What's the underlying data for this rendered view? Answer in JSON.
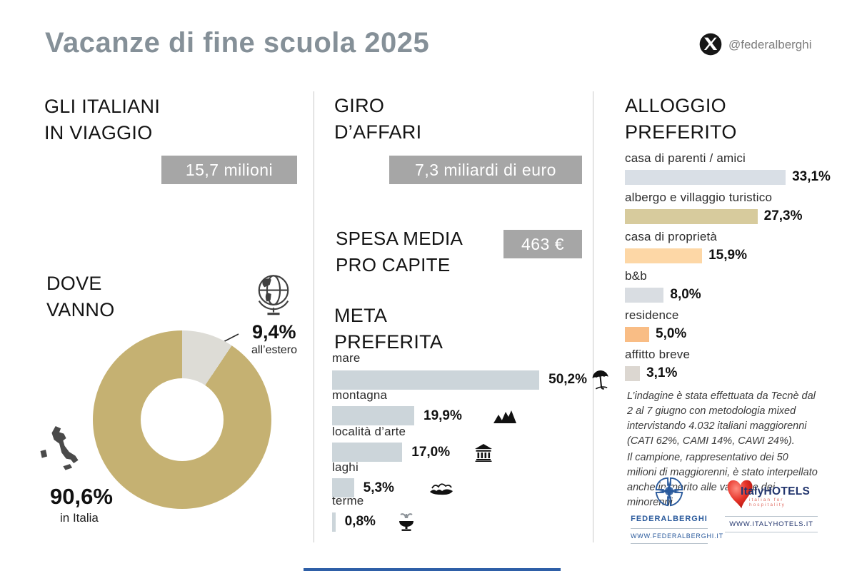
{
  "header": {
    "title": "Vacanze di fine scuola 2025",
    "social_handle": "@federalberghi",
    "title_color": "#859098"
  },
  "sections": {
    "travelers": {
      "title1": "GLI ITALIANI",
      "title2": "IN VIAGGIO",
      "value": "15,7 milioni"
    },
    "where": {
      "title1": "DOVE",
      "title2": "VANNO"
    },
    "business": {
      "title1": "GIRO",
      "title2": "D’AFFARI",
      "value": "7,3 miliardi di euro"
    },
    "spend": {
      "title1": "SPESA MEDIA",
      "title2": "PRO CAPITE",
      "value": "463 €"
    },
    "destination": {
      "title1": "META",
      "title2": "PREFERITA"
    },
    "lodging": {
      "title1": "ALLOGGIO",
      "title2": "PREFERITO"
    }
  },
  "footnote": {
    "para1": "L’indagine è stata effettuata da Tecnè dal 2 al 7 giugno con metodologia mixed intervistando 4.032 italiani maggiorenni (CATI 62%, CAMI 14%, CAWI 24%).",
    "para2": "Il campione, rappresentativo dei 50 milioni di maggiorenni, è stato interpellato anche in merito alle vacanze dei minorenni."
  },
  "logos": {
    "federalberghi": {
      "name": "FEDERALBERGHI",
      "url": "WWW.FEDERALBERGHI.IT",
      "blue": "#2a5a9c"
    },
    "italyhotels": {
      "name": "ItalyHOTELS",
      "tagline": "italian for hospitality",
      "url": "WWW.ITALYHOTELS.IT",
      "red": "#e63329",
      "navy": "#23366e"
    }
  },
  "chart_data": [
    {
      "id": "dove-vanno-donut",
      "type": "pie",
      "donut": true,
      "title": "DOVE VANNO",
      "categories": [
        "in Italia",
        "all’estero"
      ],
      "values": [
        90.6,
        9.4
      ],
      "labels": [
        "90,6%",
        "9,4%"
      ],
      "colors": [
        "#c5b172",
        "#dddcd6"
      ],
      "legend_position": "outside-callouts"
    },
    {
      "id": "meta-preferita",
      "type": "bar",
      "orientation": "horizontal",
      "title": "META PREFERITA",
      "categories": [
        "mare",
        "montagna",
        "località d’arte",
        "laghi",
        "terme"
      ],
      "values": [
        50.2,
        19.9,
        17.0,
        5.3,
        0.8
      ],
      "labels": [
        "50,2%",
        "19,9%",
        "17,0%",
        "5,3%",
        "0,8%"
      ],
      "icons": [
        "beach-umbrella",
        "mountains",
        "museum",
        "lake",
        "thermal-fountain"
      ],
      "bar_color": "#ccd5da",
      "xlim": [
        0,
        52
      ],
      "grid": false
    },
    {
      "id": "alloggio-preferito",
      "type": "bar",
      "orientation": "horizontal",
      "title": "ALLOGGIO PREFERITO",
      "categories": [
        "casa di parenti / amici",
        "albergo e villaggio turistico",
        "casa di proprietà",
        "b&b",
        "residence",
        "affitto breve"
      ],
      "values": [
        33.1,
        27.3,
        15.9,
        8.0,
        5.0,
        3.1
      ],
      "labels": [
        "33,1%",
        "27,3%",
        "15,9%",
        "8,0%",
        "5,0%",
        "3,1%"
      ],
      "colors": [
        "#d9dfe6",
        "#d7cb9d",
        "#fdd7a6",
        "#d9dde2",
        "#f9bd85",
        "#dcd7d1"
      ],
      "xlim": [
        0,
        34
      ],
      "grid": false
    }
  ]
}
